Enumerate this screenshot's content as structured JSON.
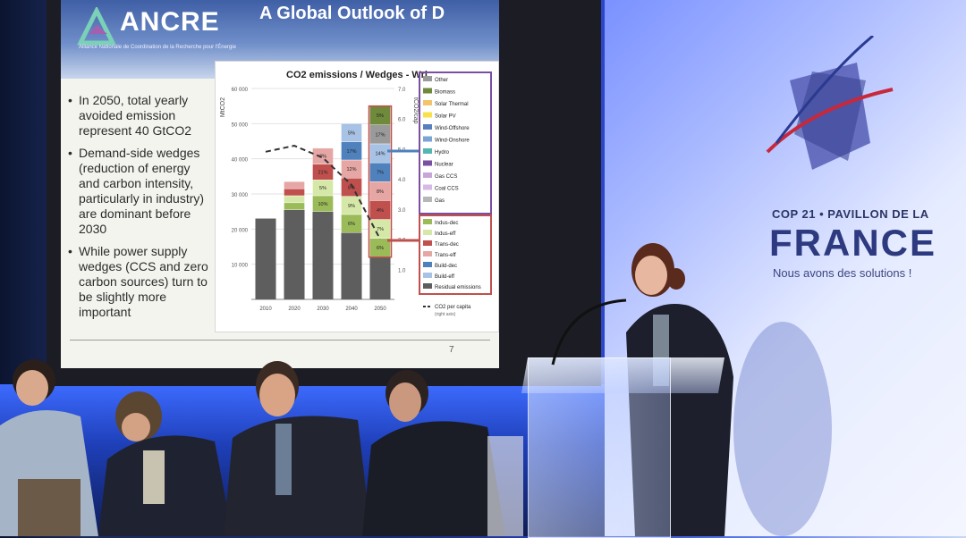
{
  "slide": {
    "logo": "ANCRE",
    "logo_subtitle": "Alliance Nationale de Coordination de la Recherche pour l'Énergie",
    "title": "A Global Outlook of D",
    "bullets": [
      "In 2050, total yearly avoided emission represent 40 GtCO2",
      "Demand-side wedges (reduction of energy and carbon intensity, particularly in industry) are dominant before 2030",
      "While power supply wedges (CCS and zero carbon sources) turn to be slightly more important"
    ],
    "page_number": "7"
  },
  "chart_data": {
    "type": "bar",
    "title": "CO2 emissions / Wedges - Wrl",
    "ylabel": "MtCO2",
    "y2label": "tCO2/cap",
    "categories": [
      "2010",
      "2020",
      "2030",
      "2040",
      "2050"
    ],
    "yticks": [
      "10 000",
      "20 000",
      "30 000",
      "40 000",
      "50 000",
      "60 000"
    ],
    "y2ticks": [
      "1.0",
      "2.0",
      "3.0",
      "4.0",
      "5.0",
      "6.0",
      "7.0"
    ],
    "ylim": [
      0,
      60000
    ],
    "y2lim": [
      0,
      7
    ],
    "residual": [
      23000,
      25500,
      25000,
      19000,
      12000
    ],
    "wedge_totals": [
      0,
      8000,
      18000,
      31000,
      43000
    ],
    "segment_labels": {
      "2030": [
        "10%",
        "5%",
        "21%",
        "3%"
      ],
      "2040": [
        "6%",
        "9%",
        "8%",
        "12%",
        "17%",
        "5%"
      ],
      "2050": [
        "6%",
        "7%",
        "4%",
        "8%",
        "7%",
        "14%",
        "17%",
        "5%"
      ]
    },
    "co2_per_capita": [
      4.9,
      5.1,
      4.7,
      3.8,
      2.0
    ],
    "legend_supply": [
      "Other",
      "Biomass",
      "Solar Thermal",
      "Solar PV",
      "Wind-Offshore",
      "Wind-Onshore",
      "Hydro",
      "Nuclear",
      "Gas CCS",
      "Coal CCS",
      "Gas"
    ],
    "legend_demand": [
      "Indus-dec",
      "Indus-eff",
      "Trans-dec",
      "Trans-eff",
      "Build-dec",
      "Build-eff",
      "Residual emissions"
    ],
    "legend_line": "CO2 per capita",
    "legend_line_note": "(right axis)",
    "colors": {
      "residual": "#5e5e5e",
      "supply": [
        "#9a9a9a",
        "#6f8a3a",
        "#f3c46b",
        "#f7e24a",
        "#5a7fbf",
        "#7aa3d6",
        "#55b6b0",
        "#7a4fa0",
        "#c9a6d9",
        "#d7b9e6",
        "#b7b7b7"
      ],
      "demand": [
        "#9bbb59",
        "#d6e8a8",
        "#c0504d",
        "#e6a6a4",
        "#4f81bd",
        "#a7c2e4"
      ]
    }
  },
  "wall": {
    "event_line": "COP 21 • PAVILLON DE LA",
    "country": "FRANCE",
    "tagline": "Nous avons des solutions !"
  }
}
